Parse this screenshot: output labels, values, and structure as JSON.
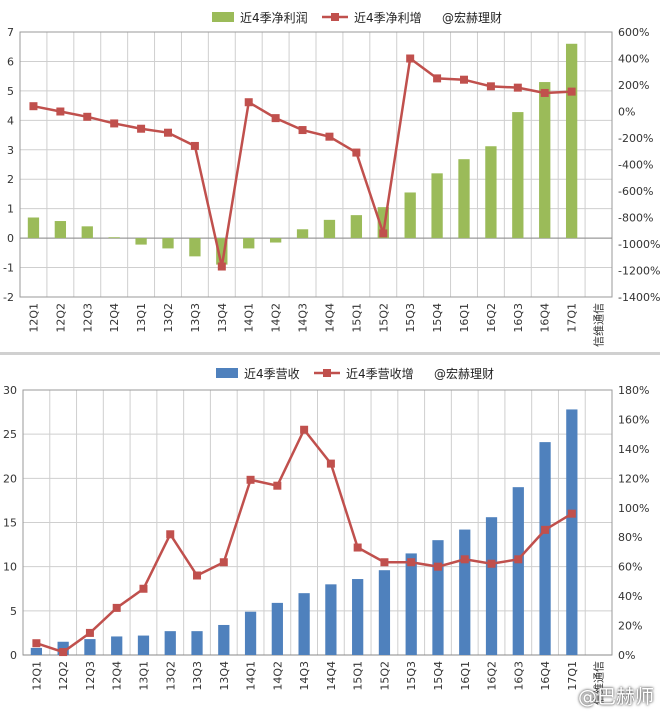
{
  "chart_data": [
    {
      "type": "bar",
      "categories": [
        "12Q1",
        "12Q2",
        "12Q3",
        "12Q4",
        "13Q1",
        "13Q2",
        "13Q3",
        "13Q4",
        "14Q1",
        "14Q2",
        "14Q3",
        "14Q4",
        "15Q1",
        "15Q2",
        "15Q3",
        "15Q4",
        "16Q1",
        "16Q2",
        "16Q3",
        "16Q4",
        "17Q1"
      ],
      "extra_category_label": "信维通信",
      "series": [
        {
          "name": "近4季净利润",
          "kind": "bar",
          "axis": "left",
          "color": "#9BBB59",
          "values": [
            0.7,
            0.58,
            0.4,
            0.03,
            -0.22,
            -0.35,
            -0.62,
            -0.9,
            -0.35,
            -0.15,
            0.3,
            0.62,
            0.78,
            1.05,
            1.55,
            2.2,
            2.68,
            3.12,
            4.28,
            5.3,
            6.6
          ]
        },
        {
          "name": "近4季净利增",
          "kind": "line",
          "axis": "right",
          "color": "#C0504D",
          "values": [
            40,
            0,
            -40,
            -90,
            -130,
            -160,
            -260,
            -1170,
            70,
            -50,
            -140,
            -190,
            -310,
            -920,
            400,
            250,
            240,
            190,
            180,
            140,
            150
          ]
        }
      ],
      "legend_extra": "@宏赫理财",
      "ylim": [
        -2,
        7
      ],
      "yticks": [
        "-2",
        "-1",
        "0",
        "1",
        "2",
        "3",
        "4",
        "5",
        "6",
        "7"
      ],
      "y2lim": [
        -1400,
        600
      ],
      "y2ticks": [
        "-1400%",
        "-1200%",
        "-1000%",
        "-800%",
        "-600%",
        "-400%",
        "-200%",
        "0%",
        "200%",
        "400%",
        "600%"
      ],
      "legend_position": "top",
      "grid": true
    },
    {
      "type": "bar",
      "categories": [
        "12Q1",
        "12Q2",
        "12Q3",
        "12Q4",
        "13Q1",
        "13Q2",
        "13Q3",
        "13Q4",
        "14Q1",
        "14Q2",
        "14Q3",
        "14Q4",
        "15Q1",
        "15Q2",
        "15Q3",
        "15Q4",
        "16Q1",
        "16Q2",
        "16Q3",
        "16Q4",
        "17Q1"
      ],
      "extra_category_label": "信维通信",
      "series": [
        {
          "name": "近4季营收",
          "kind": "bar",
          "axis": "left",
          "color": "#4F81BD",
          "values": [
            0.8,
            1.5,
            1.8,
            2.1,
            2.2,
            2.7,
            2.7,
            3.4,
            4.9,
            5.9,
            7.0,
            8.0,
            8.6,
            9.6,
            11.5,
            13.0,
            14.2,
            15.6,
            19.0,
            24.1,
            27.8
          ]
        },
        {
          "name": "近4季营收增",
          "kind": "line",
          "axis": "right",
          "color": "#C0504D",
          "values": [
            8,
            2,
            15,
            32,
            45,
            82,
            54,
            63,
            119,
            115,
            153,
            130,
            73,
            63,
            63,
            60,
            65,
            62,
            65,
            85,
            96
          ]
        }
      ],
      "legend_extra": "@宏赫理财",
      "ylim": [
        0,
        30
      ],
      "yticks": [
        "0",
        "5",
        "10",
        "15",
        "20",
        "25",
        "30"
      ],
      "y2lim": [
        0,
        180
      ],
      "y2ticks": [
        "0%",
        "20%",
        "40%",
        "60%",
        "80%",
        "100%",
        "120%",
        "140%",
        "160%",
        "180%"
      ],
      "legend_position": "top",
      "grid": true
    }
  ],
  "watermark": "@巴赫师"
}
